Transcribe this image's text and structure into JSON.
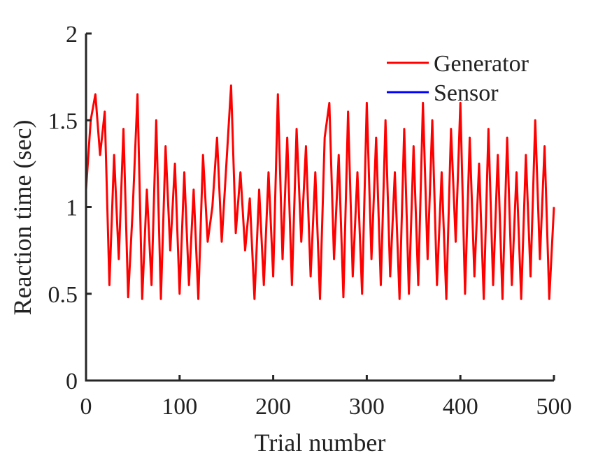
{
  "chart_data": {
    "type": "line",
    "title": "",
    "xlabel": "Trial number",
    "ylabel": "Reaction time (sec)",
    "xlim": [
      0,
      500
    ],
    "ylim": [
      0,
      2
    ],
    "xticks": [
      0,
      100,
      200,
      300,
      400,
      500
    ],
    "yticks": [
      0,
      0.5,
      1,
      1.5,
      2
    ],
    "xtick_labels": [
      "0",
      "100",
      "200",
      "300",
      "400",
      "500"
    ],
    "ytick_labels": [
      "0",
      "0.5",
      "1",
      "1.5",
      "2"
    ],
    "grid": false,
    "legend_placement": "top-right",
    "legend": [
      {
        "name": "Generator",
        "color": "#ff0000"
      },
      {
        "name": "Sensor",
        "color": "#0000ff"
      }
    ],
    "series": [
      {
        "name": "Generator",
        "color": "#ff0000",
        "x": [
          0,
          5,
          10,
          15,
          20,
          25,
          30,
          35,
          40,
          45,
          50,
          55,
          60,
          65,
          70,
          75,
          80,
          85,
          90,
          95,
          100,
          105,
          110,
          115,
          120,
          125,
          130,
          135,
          140,
          145,
          150,
          155,
          160,
          165,
          170,
          175,
          180,
          185,
          190,
          195,
          200,
          205,
          210,
          215,
          220,
          225,
          230,
          235,
          240,
          245,
          250,
          255,
          260,
          265,
          270,
          275,
          280,
          285,
          290,
          295,
          300,
          305,
          310,
          315,
          320,
          325,
          330,
          335,
          340,
          345,
          350,
          355,
          360,
          365,
          370,
          375,
          380,
          385,
          390,
          395,
          400,
          405,
          410,
          415,
          420,
          425,
          430,
          435,
          440,
          445,
          450,
          455,
          460,
          465,
          470,
          475,
          480,
          485,
          490,
          495,
          500
        ],
        "y": [
          1.1,
          1.5,
          1.65,
          1.3,
          1.55,
          0.55,
          1.3,
          0.7,
          1.45,
          0.48,
          1.0,
          1.65,
          0.47,
          1.1,
          0.55,
          1.5,
          0.47,
          1.35,
          0.75,
          1.25,
          0.5,
          1.2,
          0.55,
          1.1,
          0.47,
          1.3,
          0.8,
          1.0,
          1.4,
          0.8,
          1.25,
          1.7,
          0.85,
          1.2,
          0.75,
          1.05,
          0.47,
          1.1,
          0.55,
          1.2,
          0.6,
          1.65,
          0.7,
          1.4,
          0.55,
          1.45,
          0.8,
          1.35,
          0.6,
          1.2,
          0.47,
          1.4,
          1.6,
          0.7,
          1.3,
          0.48,
          1.55,
          0.6,
          1.2,
          0.5,
          1.6,
          0.7,
          1.4,
          0.55,
          1.5,
          0.6,
          1.2,
          0.47,
          1.45,
          0.5,
          1.35,
          0.55,
          1.6,
          0.7,
          1.5,
          0.55,
          1.2,
          0.47,
          1.45,
          0.8,
          1.6,
          0.5,
          1.4,
          0.6,
          1.25,
          0.47,
          1.45,
          0.55,
          1.3,
          0.47,
          1.4,
          0.55,
          1.2,
          0.47,
          1.3,
          0.6,
          1.5,
          0.7,
          1.35,
          0.47,
          1.0
        ]
      },
      {
        "name": "Sensor",
        "color": "#0000ff",
        "x": [],
        "y": []
      }
    ]
  }
}
